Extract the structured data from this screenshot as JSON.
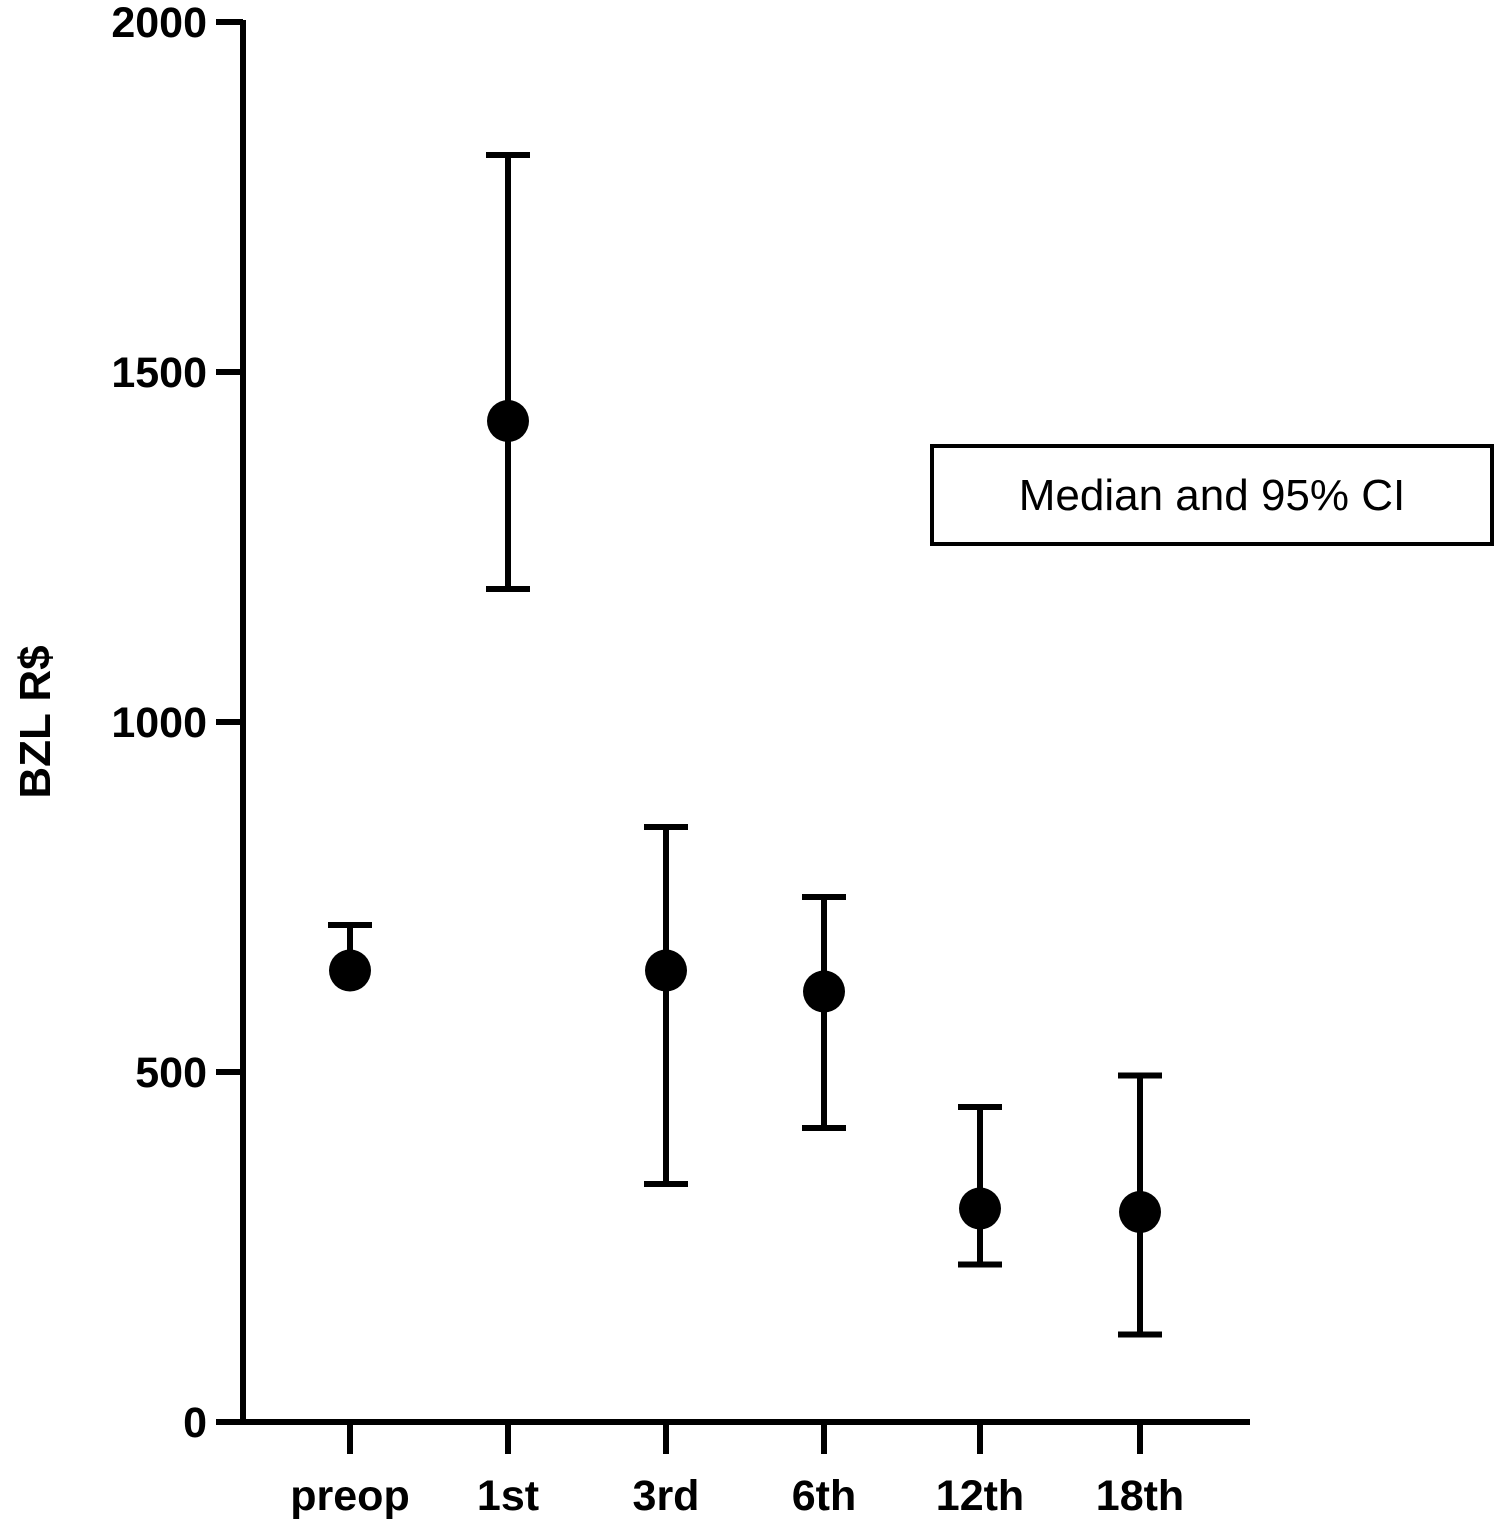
{
  "chart_data": {
    "type": "scatter",
    "title": "",
    "xlabel": "",
    "ylabel": "BZL R$",
    "categories": [
      "preop",
      "1st",
      "3rd",
      "6th",
      "12th",
      "18th"
    ],
    "ylim": [
      0,
      2000
    ],
    "yticks": [
      0,
      500,
      1000,
      1500,
      2000
    ],
    "grid": false,
    "series": [
      {
        "name": "",
        "median": [
          645,
          1430,
          645,
          615,
          305,
          300
        ],
        "ci_low": [
          null,
          1190,
          340,
          420,
          225,
          125
        ],
        "ci_high": [
          710,
          1810,
          850,
          750,
          450,
          495
        ]
      }
    ],
    "legend": {
      "text": "Median and 95% CI",
      "placement": "right"
    }
  }
}
